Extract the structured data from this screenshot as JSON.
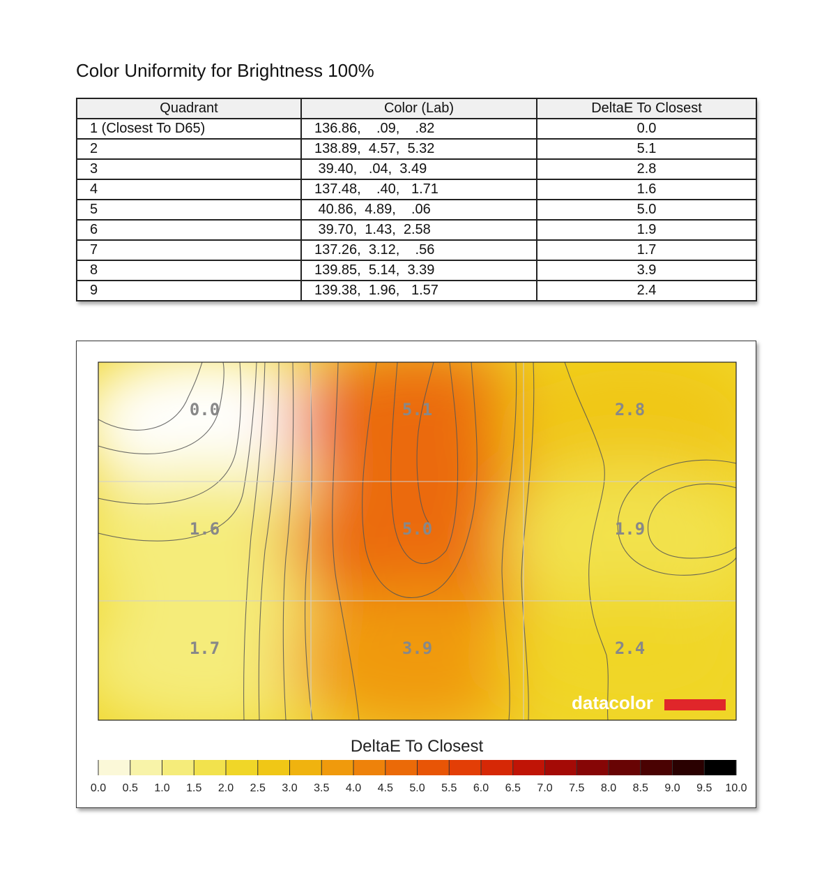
{
  "title": "Color Uniformity for Brightness 100%",
  "table": {
    "headers": [
      "Quadrant",
      "Color (Lab)",
      "DeltaE To Closest"
    ],
    "rows": [
      [
        "1 (Closest To D65)",
        "136.86,    .09,    .82",
        "0.0"
      ],
      [
        "2",
        "138.89,  4.57,  5.32",
        "5.1"
      ],
      [
        "3",
        " 39.40,   .04,  3.49",
        "2.8"
      ],
      [
        "4",
        "137.48,    .40,   1.71",
        "1.6"
      ],
      [
        "5",
        " 40.86,  4.89,    .06",
        "5.0"
      ],
      [
        "6",
        " 39.70,  1.43,  2.58",
        "1.9"
      ],
      [
        "7",
        "137.26,  3.12,    .56",
        "1.7"
      ],
      [
        "8",
        "139.85,  5.14,  3.39",
        "3.9"
      ],
      [
        "9",
        "139.38,  1.96,   1.57",
        "2.4"
      ]
    ]
  },
  "chart_data": {
    "type": "heatmap",
    "title": "DeltaE To Closest",
    "grid": [
      [
        0.0,
        5.1,
        2.8
      ],
      [
        1.6,
        5.0,
        1.9
      ],
      [
        1.7,
        3.9,
        2.4
      ]
    ],
    "cell_labels": [
      [
        "0.0",
        "5.1",
        "2.8"
      ],
      [
        "1.6",
        "5.0",
        "1.9"
      ],
      [
        "1.7",
        "3.9",
        "2.4"
      ]
    ],
    "color_scale_range": [
      0,
      10
    ],
    "legend_ticks": [
      "0.0",
      "0.5",
      "1.0",
      "1.5",
      "2.0",
      "2.5",
      "3.0",
      "3.5",
      "4.0",
      "4.5",
      "5.0",
      "5.5",
      "6.0",
      "6.5",
      "7.0",
      "7.5",
      "8.0",
      "8.5",
      "9.0",
      "9.5",
      "10.0"
    ],
    "colors": [
      "#ffffff",
      "#fbf8d8",
      "#f8f3a8",
      "#f5ec7a",
      "#f2e24d",
      "#f0d628",
      "#f0c716",
      "#f0b30f",
      "#f09a0c",
      "#ee820a",
      "#eb6a08",
      "#e85506",
      "#e33e06",
      "#d62806",
      "#c01406",
      "#a40a06",
      "#860606",
      "#680404",
      "#4a0202",
      "#2a0101",
      "#000000"
    ],
    "logo_text": "datacolor",
    "logo_color": "#e0262a"
  }
}
